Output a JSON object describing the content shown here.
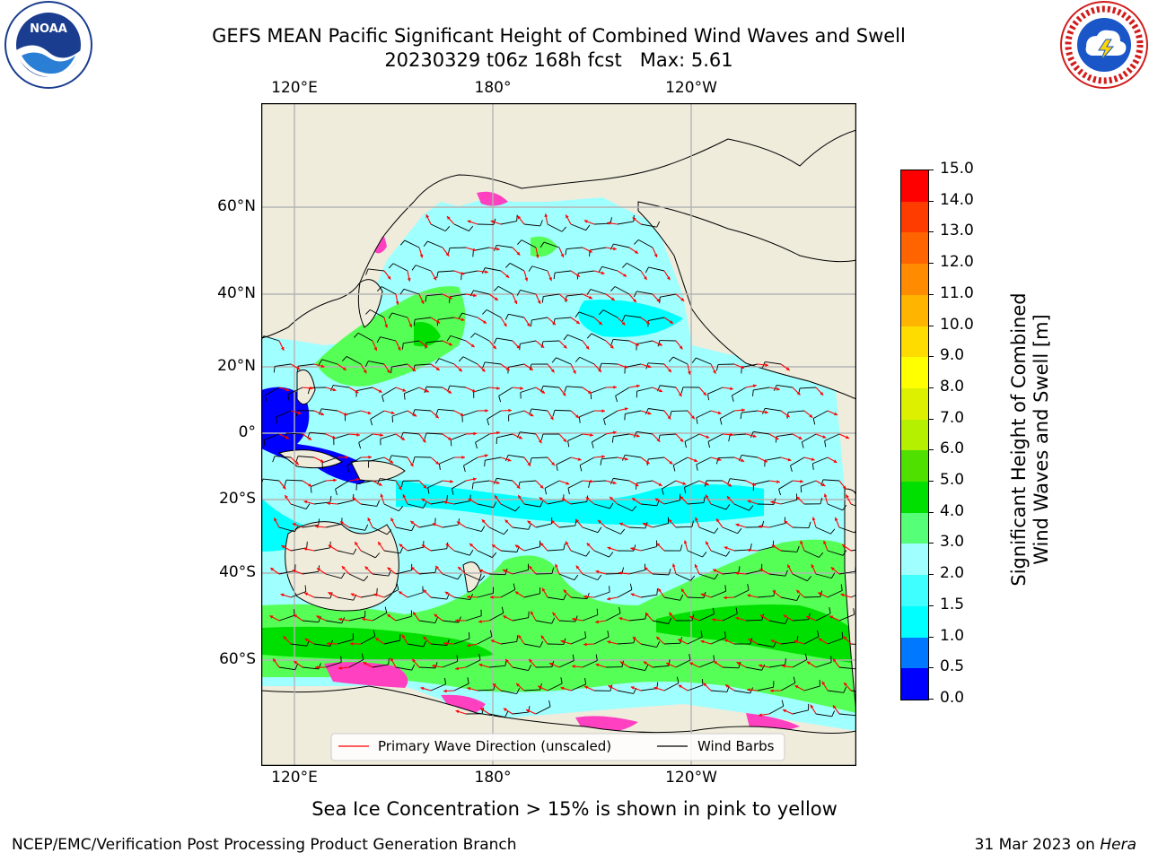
{
  "header": {
    "title_line1": "GEFS MEAN Pacific Significant Height of Combined Wind Waves and Swell",
    "title_line2": "20230329 t06z 168h fcst   Max: 5.61"
  },
  "logos": {
    "noaa_text": "NOAA",
    "noaa_ring_text": "NATIONAL OCEANIC AND ATMOSPHERIC ADMINISTRATION · U.S. DEPARTMENT OF COMMERCE",
    "nws_ring_text": "NATIONAL WEATHER SERVICE"
  },
  "map": {
    "lon_labels": [
      "120°E",
      "180°",
      "120°W"
    ],
    "lat_labels": [
      "60°N",
      "40°N",
      "20°N",
      "0°",
      "20°S",
      "40°S",
      "60°S"
    ],
    "colors": {
      "land": "#efecdc",
      "very_low": "#0000ff",
      "low": "#00ffff",
      "mid": "#a0ffff",
      "high": "#56ff56",
      "highest": "#00e000",
      "ice": "#ff40c0",
      "wave_dir": "#ff0000",
      "barbs": "#000000"
    },
    "legend": {
      "primary_wave": "Primary Wave Direction (unscaled)",
      "wind_barbs": "Wind Barbs"
    }
  },
  "colorbar": {
    "label_line1": "Significant Height of Combined",
    "label_line2": "Wind Waves and Swell [m]",
    "ticks": [
      "0.0",
      "0.5",
      "1.0",
      "1.5",
      "2.0",
      "3.0",
      "4.0",
      "5.0",
      "6.0",
      "7.0",
      "8.0",
      "9.0",
      "10.0",
      "11.0",
      "12.0",
      "13.0",
      "14.0",
      "15.0"
    ],
    "colors": [
      "#0000ff",
      "#0078ff",
      "#00ffff",
      "#40ffff",
      "#a0ffff",
      "#56ff78",
      "#00e000",
      "#50e000",
      "#b4f000",
      "#dcf000",
      "#ffff00",
      "#ffdc00",
      "#ffb400",
      "#ff8c00",
      "#ff6400",
      "#ff3c00",
      "#ff0000"
    ]
  },
  "notes": {
    "sea_ice": "Sea Ice Concentration > 15% is shown in pink to yellow"
  },
  "footer": {
    "left": "NCEP/EMC/Verification Post Processing Product Generation Branch",
    "right_date": "31 Mar 2023 on ",
    "right_machine": "Hera"
  }
}
